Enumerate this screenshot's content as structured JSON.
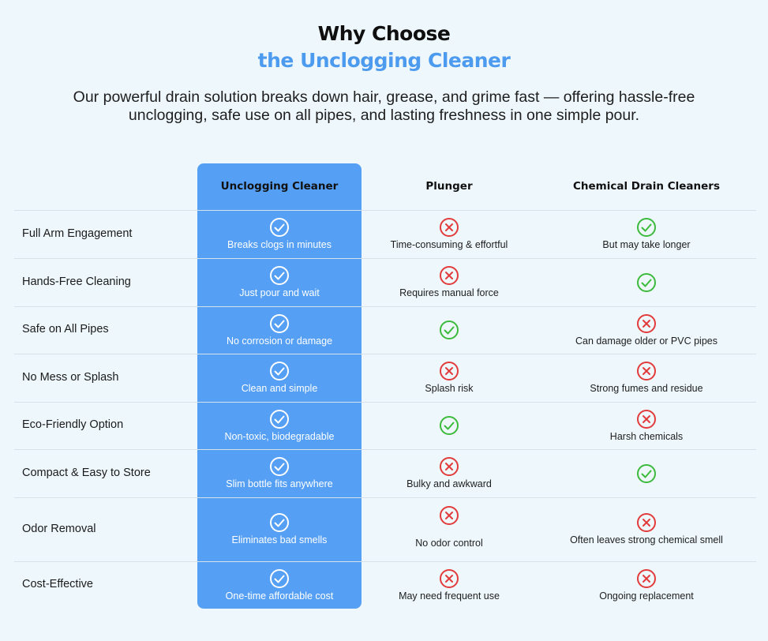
{
  "heading": {
    "line1": "Why Choose",
    "line2": "the Unclogging Cleaner",
    "subtitle": "Our powerful drain solution breaks down hair, grease, and grime fast — offering hassle-free unclogging, safe use on all pipes, and lasting freshness in one simple pour."
  },
  "colors": {
    "accent": "#4d9bef",
    "highlight_column": "#559ff4",
    "check": "#3cba3c",
    "cross": "#e23b3b",
    "background": "#eef7fc"
  },
  "columns": [
    "Unclogging Cleaner",
    "Plunger",
    "Chemical Drain Cleaners"
  ],
  "rows": [
    {
      "feature": "Full Arm Engagement",
      "cleaner": {
        "icon": "check-icon",
        "text": "Breaks clogs in minutes"
      },
      "plunger": {
        "icon": "cross-icon",
        "text": "Time-consuming & effortful"
      },
      "chemical": {
        "icon": "check-icon",
        "text": "But may take longer"
      }
    },
    {
      "feature": "Hands-Free Cleaning",
      "cleaner": {
        "icon": "check-icon",
        "text": "Just pour and wait"
      },
      "plunger": {
        "icon": "cross-icon",
        "text": "Requires manual force"
      },
      "chemical": {
        "icon": "check-icon",
        "text": ""
      }
    },
    {
      "feature": "Safe on All Pipes",
      "cleaner": {
        "icon": "check-icon",
        "text": "No corrosion or damage"
      },
      "plunger": {
        "icon": "check-icon",
        "text": ""
      },
      "chemical": {
        "icon": "cross-icon",
        "text": "Can damage older or PVC pipes"
      }
    },
    {
      "feature": "No Mess or Splash",
      "cleaner": {
        "icon": "check-icon",
        "text": "Clean and simple"
      },
      "plunger": {
        "icon": "cross-icon",
        "text": "Splash risk"
      },
      "chemical": {
        "icon": "cross-icon",
        "text": "Strong fumes and residue"
      }
    },
    {
      "feature": "Eco-Friendly Option",
      "cleaner": {
        "icon": "check-icon",
        "text": "Non-toxic, biodegradable"
      },
      "plunger": {
        "icon": "check-icon",
        "text": ""
      },
      "chemical": {
        "icon": "cross-icon",
        "text": "Harsh chemicals"
      }
    },
    {
      "feature": "Compact & Easy to Store",
      "cleaner": {
        "icon": "check-icon",
        "text": "Slim bottle fits anywhere"
      },
      "plunger": {
        "icon": "cross-icon",
        "text": "Bulky and awkward"
      },
      "chemical": {
        "icon": "check-icon",
        "text": ""
      }
    },
    {
      "feature": "Odor Removal",
      "cleaner": {
        "icon": "check-icon",
        "text": "Eliminates bad smells"
      },
      "plunger": {
        "icon": "cross-icon",
        "text": "No odor control"
      },
      "chemical": {
        "icon": "cross-icon",
        "text": "Often leaves strong chemical smell"
      }
    },
    {
      "feature": "Cost-Effective",
      "cleaner": {
        "icon": "check-icon",
        "text": "One-time affordable cost"
      },
      "plunger": {
        "icon": "cross-icon",
        "text": "May need frequent use"
      },
      "chemical": {
        "icon": "cross-icon",
        "text": "Ongoing replacement"
      }
    }
  ]
}
